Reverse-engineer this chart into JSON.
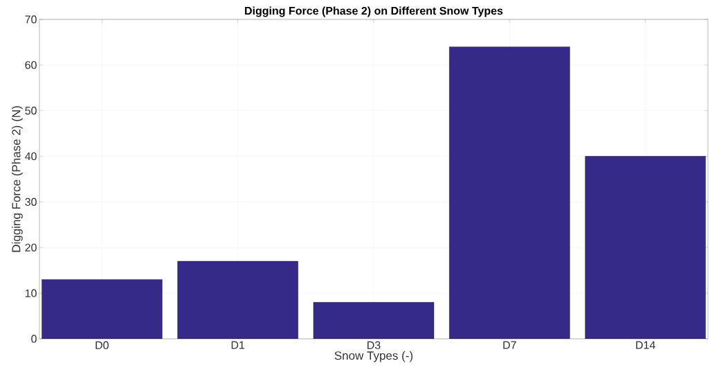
{
  "chart_data": {
    "type": "bar",
    "title": "Digging Force (Phase 2) on Different Snow Types",
    "xlabel": "Snow Types (-)",
    "ylabel": "Digging Force (Phase 2) (N)",
    "categories": [
      "D0",
      "D1",
      "D3",
      "D7",
      "D14"
    ],
    "values": [
      13,
      17,
      8,
      64,
      40
    ],
    "color": "#352a87",
    "ylim": [
      0,
      70
    ],
    "yticks": [
      0,
      10,
      20,
      30,
      40,
      50,
      60,
      70
    ],
    "grid": true
  }
}
